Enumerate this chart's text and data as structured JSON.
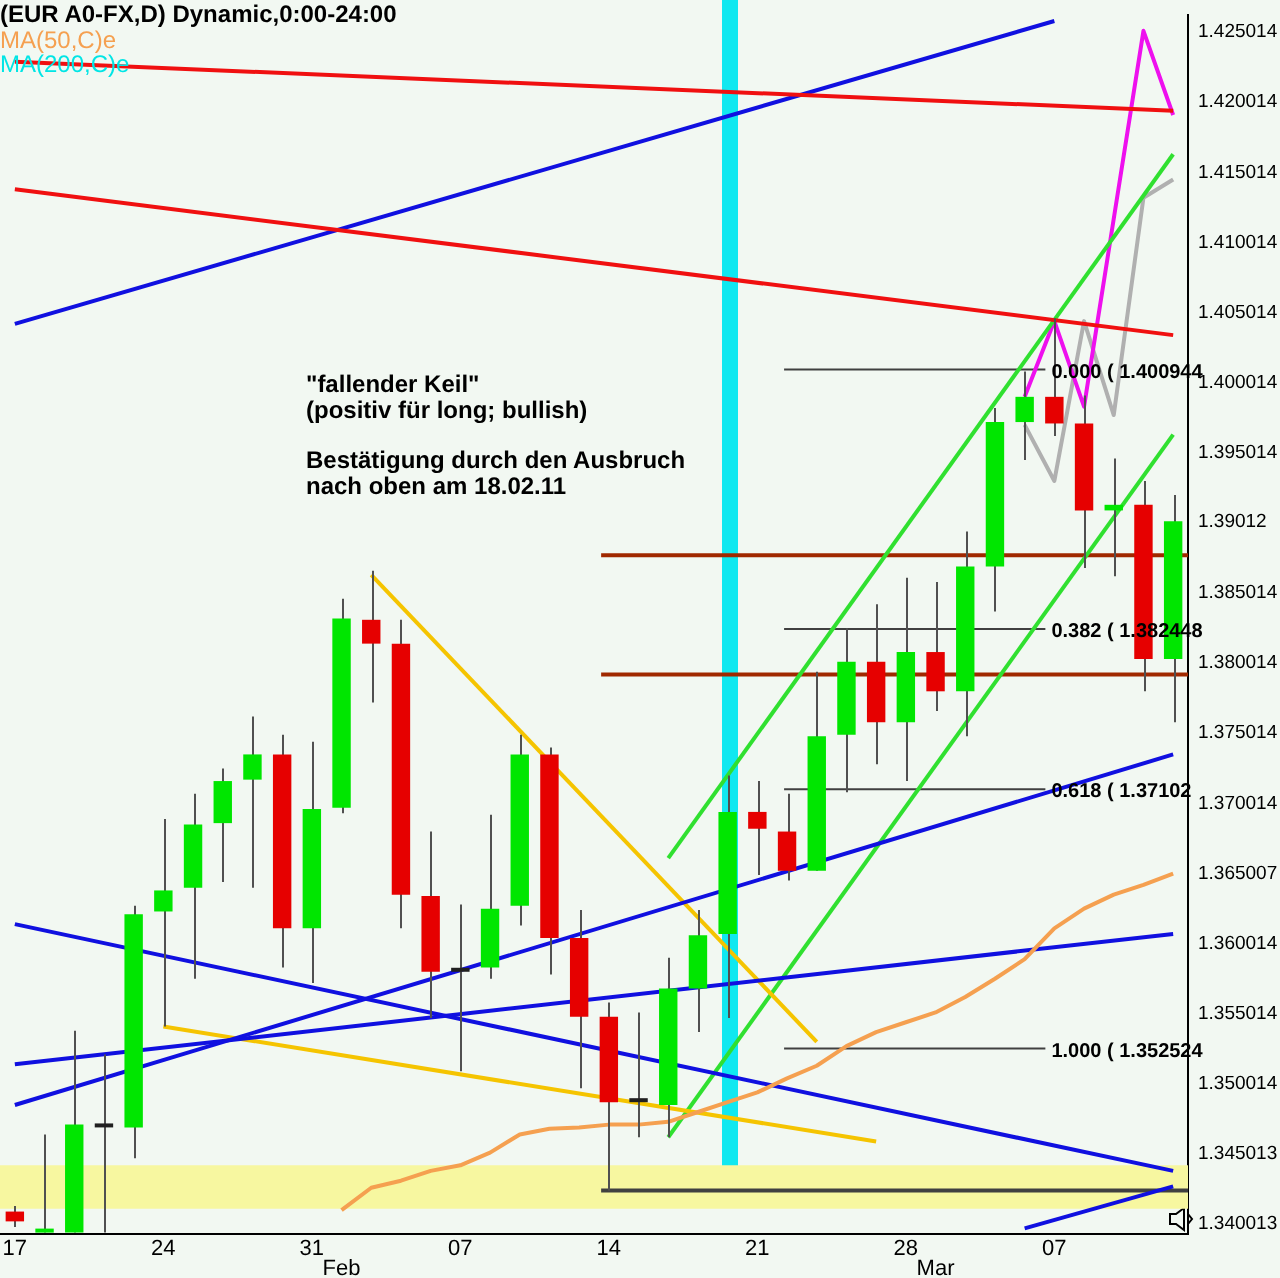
{
  "chart_data": {
    "type": "candlestick",
    "title": "(EUR A0-FX,D) Dynamic,0:00-24:00",
    "categories": [
      "17",
      null,
      null,
      null,
      null,
      "24",
      null,
      null,
      null,
      null,
      "31",
      "Feb",
      null,
      null,
      null,
      "07",
      null,
      null,
      null,
      null,
      "14",
      null,
      null,
      null,
      null,
      "21",
      null,
      null,
      null,
      null,
      "28",
      "Mar",
      null,
      null,
      null,
      "07",
      null,
      null,
      null,
      null
    ],
    "ohlc": [
      [
        1.3409,
        1.3413,
        1.3398,
        1.3402
      ],
      [
        1.3394,
        1.3464,
        1.3394,
        1.3396
      ],
      [
        1.3394,
        1.3538,
        1.3394,
        1.3471
      ],
      [
        1.3469,
        1.3521,
        1.3394,
        1.3469
      ],
      [
        1.3469,
        1.3627,
        1.3447,
        1.3621
      ],
      [
        1.3623,
        1.3689,
        1.3541,
        1.3638
      ],
      [
        1.364,
        1.3707,
        1.3575,
        1.3685
      ],
      [
        1.3686,
        1.3725,
        1.3644,
        1.3716
      ],
      [
        1.3717,
        1.3762,
        1.364,
        1.3735
      ],
      [
        1.3735,
        1.3749,
        1.3583,
        1.3611
      ],
      [
        1.3611,
        1.3744,
        1.3572,
        1.3696
      ],
      [
        1.3697,
        1.3846,
        1.3693,
        1.3832
      ],
      [
        1.3831,
        1.3866,
        1.3772,
        1.3814
      ],
      [
        1.3814,
        1.3831,
        1.3611,
        1.3635
      ],
      [
        1.3634,
        1.368,
        1.3547,
        1.358
      ],
      [
        1.358,
        1.3628,
        1.3509,
        1.358
      ],
      [
        1.3583,
        1.3692,
        1.3575,
        1.3625
      ],
      [
        1.3627,
        1.3749,
        1.3613,
        1.3735
      ],
      [
        1.3735,
        1.374,
        1.3578,
        1.3604
      ],
      [
        1.3604,
        1.3624,
        1.3497,
        1.3548
      ],
      [
        1.3548,
        1.3558,
        1.3424,
        1.3487
      ],
      [
        1.3487,
        1.3551,
        1.3462,
        1.3487
      ],
      [
        1.3485,
        1.359,
        1.3462,
        1.3568
      ],
      [
        1.3568,
        1.3624,
        1.3537,
        1.3606
      ],
      [
        1.3607,
        1.372,
        1.3547,
        1.3694
      ],
      [
        1.3694,
        1.3716,
        1.3649,
        1.3682
      ],
      [
        1.368,
        1.3707,
        1.3645,
        1.3652
      ],
      [
        1.3652,
        1.3794,
        1.3652,
        1.3748
      ],
      [
        1.3749,
        1.3825,
        1.3708,
        1.3801
      ],
      [
        1.3801,
        1.3842,
        1.3728,
        1.3758
      ],
      [
        1.3758,
        1.3861,
        1.3716,
        1.3808
      ],
      [
        1.3808,
        1.3858,
        1.3766,
        1.378
      ],
      [
        1.378,
        1.3894,
        1.3748,
        1.3869
      ],
      [
        1.3869,
        1.3982,
        1.3837,
        1.3972
      ],
      [
        1.3972,
        1.4008,
        1.3945,
        1.399
      ],
      [
        1.399,
        1.4046,
        1.3962,
        1.3971
      ],
      [
        1.3971,
        1.3991,
        1.3868,
        1.3909
      ],
      [
        1.3909,
        1.3946,
        1.3862,
        1.3913
      ],
      [
        1.3913,
        1.393,
        1.378,
        1.3803
      ],
      [
        1.3803,
        1.392,
        1.3758,
        1.39012
      ]
    ],
    "colors": [
      "#e60000",
      "#00e600",
      "#00e600",
      "#202020",
      "#00e600",
      "#00e600",
      "#00e600",
      "#00e600",
      "#00e600",
      "#e60000",
      "#00e600",
      "#00e600",
      "#e60000",
      "#e60000",
      "#e60000",
      "#202020",
      "#00e600",
      "#00e600",
      "#e60000",
      "#e60000",
      "#e60000",
      "#202020",
      "#00e600",
      "#00e600",
      "#00e600",
      "#e60000",
      "#e60000",
      "#00e600",
      "#00e600",
      "#e60000",
      "#00e600",
      "#e60000",
      "#00e600",
      "#00e600",
      "#00e600",
      "#e60000",
      "#e60000",
      "#00e600",
      "#e60000",
      "#00e600"
    ],
    "series": [
      {
        "type": "line",
        "name": "MA(50,C)e",
        "color": "#f5a050",
        "values": [
          null,
          null,
          null,
          null,
          null,
          null,
          null,
          null,
          null,
          null,
          null,
          1.341,
          1.3426,
          1.3431,
          1.3438,
          1.3442,
          1.3451,
          1.3464,
          1.3468,
          1.3469,
          1.3471,
          1.3471,
          1.3473,
          1.348,
          1.3487,
          1.3494,
          1.3504,
          1.3513,
          1.3527,
          1.3537,
          1.3544,
          1.3551,
          1.3562,
          1.3575,
          1.3589,
          1.3611,
          1.3625,
          1.3635,
          1.3642,
          1.365007
        ]
      },
      {
        "type": "line",
        "name": "MA(200,C)e",
        "color": "#00e5e5",
        "values": [
          null,
          null,
          null,
          null,
          null,
          null,
          null,
          null,
          null,
          null,
          null,
          null,
          null,
          null,
          null,
          null,
          null,
          null,
          null,
          null,
          null,
          null,
          null,
          null,
          null,
          null,
          null,
          null,
          null,
          null,
          null,
          null,
          null,
          null,
          null,
          null,
          null,
          null,
          null,
          null
        ]
      },
      {
        "type": "line",
        "color": "#f01010",
        "values": [
          1.4229,
          null,
          null,
          null,
          null,
          null,
          null,
          null,
          null,
          null,
          null,
          null,
          null,
          null,
          null,
          null,
          null,
          null,
          null,
          null,
          null,
          null,
          null,
          null,
          null,
          null,
          null,
          null,
          null,
          null,
          null,
          null,
          null,
          null,
          null,
          null,
          null,
          null,
          null,
          1.4194
        ]
      },
      {
        "type": "line",
        "color": "#f01010",
        "values": [
          1.4138,
          null,
          null,
          null,
          null,
          null,
          null,
          null,
          null,
          null,
          null,
          null,
          null,
          null,
          null,
          null,
          null,
          null,
          null,
          null,
          null,
          null,
          null,
          null,
          null,
          null,
          null,
          null,
          null,
          null,
          null,
          null,
          null,
          null,
          null,
          null,
          null,
          null,
          null,
          1.4034
        ]
      },
      {
        "type": "line",
        "color": "#1010e0",
        "values": [
          1.4042,
          null,
          null,
          null,
          null,
          null,
          null,
          null,
          null,
          null,
          null,
          null,
          null,
          null,
          null,
          null,
          null,
          null,
          null,
          null,
          null,
          null,
          null,
          null,
          null,
          null,
          null,
          null,
          null,
          null,
          null,
          null,
          null,
          null,
          null,
          1.4258,
          null,
          null,
          null,
          null
        ]
      },
      {
        "type": "line",
        "color": "#1010e0",
        "values": [
          1.3614,
          null,
          null,
          null,
          null,
          null,
          null,
          null,
          null,
          null,
          null,
          null,
          null,
          null,
          null,
          null,
          null,
          null,
          null,
          null,
          null,
          null,
          null,
          null,
          null,
          null,
          null,
          null,
          null,
          null,
          null,
          null,
          null,
          null,
          null,
          null,
          null,
          null,
          null,
          1.3438
        ]
      },
      {
        "type": "line",
        "color": "#1010e0",
        "values": [
          1.3485,
          null,
          null,
          null,
          null,
          null,
          null,
          null,
          null,
          null,
          null,
          null,
          null,
          null,
          null,
          null,
          null,
          null,
          null,
          null,
          null,
          null,
          null,
          null,
          null,
          null,
          null,
          null,
          null,
          null,
          null,
          null,
          null,
          null,
          null,
          null,
          null,
          null,
          null,
          1.3735
        ]
      },
      {
        "type": "line",
        "color": "#1010e0",
        "values": [
          1.3514,
          null,
          null,
          null,
          null,
          null,
          null,
          null,
          null,
          null,
          null,
          null,
          null,
          null,
          null,
          null,
          null,
          null,
          null,
          null,
          null,
          null,
          null,
          null,
          null,
          null,
          null,
          null,
          null,
          null,
          null,
          null,
          null,
          null,
          null,
          null,
          null,
          null,
          null,
          1.3607
        ]
      },
      {
        "type": "line",
        "color": "#1010e0",
        "values": [
          null,
          null,
          null,
          null,
          null,
          null,
          null,
          null,
          null,
          null,
          null,
          null,
          null,
          null,
          null,
          null,
          null,
          null,
          null,
          null,
          null,
          null,
          null,
          null,
          null,
          null,
          null,
          null,
          null,
          null,
          null,
          null,
          null,
          null,
          1.3397,
          null,
          null,
          null,
          null,
          1.3427
        ]
      },
      {
        "type": "line",
        "color": "#f5c400",
        "values": [
          null,
          null,
          null,
          null,
          null,
          null,
          null,
          null,
          null,
          null,
          null,
          null,
          1.3863,
          null,
          null,
          null,
          null,
          null,
          null,
          null,
          null,
          null,
          null,
          null,
          null,
          null,
          null,
          1.353,
          null,
          null,
          null,
          null,
          null,
          null,
          null,
          null,
          null,
          null,
          null,
          null
        ]
      },
      {
        "type": "line",
        "color": "#f5c400",
        "values": [
          null,
          null,
          null,
          null,
          null,
          1.3541,
          null,
          null,
          null,
          null,
          null,
          null,
          null,
          null,
          null,
          null,
          null,
          null,
          null,
          null,
          null,
          null,
          null,
          null,
          null,
          null,
          null,
          null,
          null,
          1.3459,
          null,
          null,
          null,
          null,
          null,
          null,
          null,
          null,
          null,
          null
        ]
      },
      {
        "type": "line",
        "color": "#30e030",
        "values": [
          null,
          null,
          null,
          null,
          null,
          null,
          null,
          null,
          null,
          null,
          null,
          null,
          null,
          null,
          null,
          null,
          null,
          null,
          null,
          null,
          null,
          null,
          1.3661,
          null,
          null,
          null,
          null,
          null,
          null,
          null,
          null,
          null,
          null,
          null,
          null,
          null,
          null,
          null,
          null,
          1.4163
        ]
      },
      {
        "type": "line",
        "color": "#30e030",
        "values": [
          null,
          null,
          null,
          null,
          null,
          null,
          null,
          null,
          null,
          null,
          null,
          null,
          null,
          null,
          null,
          null,
          null,
          null,
          null,
          null,
          null,
          null,
          1.3462,
          null,
          null,
          null,
          null,
          null,
          null,
          null,
          null,
          null,
          null,
          null,
          null,
          null,
          null,
          null,
          null,
          1.3963
        ]
      },
      {
        "type": "line",
        "color": "#ee10ee",
        "values": [
          null,
          null,
          null,
          null,
          null,
          null,
          null,
          null,
          null,
          null,
          null,
          null,
          null,
          null,
          null,
          null,
          null,
          null,
          null,
          null,
          null,
          null,
          null,
          null,
          null,
          null,
          null,
          null,
          null,
          null,
          null,
          null,
          null,
          null,
          1.399,
          1.4044,
          1.3983,
          null,
          1.4251,
          1.4191
        ]
      },
      {
        "type": "line",
        "color": "#b0b0b0",
        "values": [
          null,
          null,
          null,
          null,
          null,
          null,
          null,
          null,
          null,
          null,
          null,
          null,
          null,
          null,
          null,
          null,
          null,
          null,
          null,
          null,
          null,
          null,
          null,
          null,
          null,
          null,
          null,
          null,
          null,
          null,
          null,
          null,
          null,
          null,
          1.397,
          1.393,
          1.4044,
          1.3977,
          1.4132,
          1.4145
        ]
      }
    ],
    "ylim": [
      1.3393,
      1.4262
    ],
    "yticks": [
      1.340013,
      1.345013,
      1.350014,
      1.355014,
      1.360014,
      1.365007,
      1.370014,
      1.375014,
      1.380014,
      1.385014,
      1.39012,
      1.395014,
      1.400014,
      1.405014,
      1.410014,
      1.415014,
      1.420014,
      1.425014
    ],
    "bands": [
      {
        "axis": "y",
        "from": 1.3411,
        "to": 1.3442,
        "color": "#f7f7a0"
      }
    ],
    "ref_lines": [
      {
        "axis": "y",
        "value": 1.3877,
        "color": "#a02800"
      },
      {
        "axis": "y",
        "value": 1.3792,
        "color": "#a02800"
      },
      {
        "axis": "y",
        "value": 1.3424,
        "color": "#404040"
      },
      {
        "axis": "y",
        "value": 1.400944,
        "label": "0.000 ( 1.400944",
        "color": "#404040"
      },
      {
        "axis": "y",
        "value": 1.382448,
        "label": "0.382 ( 1.382448",
        "color": "#404040"
      },
      {
        "axis": "y",
        "value": 1.37102,
        "label": "0.618 ( 1.37102",
        "color": "#404040"
      },
      {
        "axis": "y",
        "value": 1.352524,
        "label": "1.000 ( 1.352524",
        "color": "#404040"
      }
    ],
    "annotations": [
      "\"fallender Keil\"\n(positiv für long; bullish)",
      "Bestätigung durch den Ausbruch\nnach oben am 18.02.11"
    ],
    "legend": "top left"
  }
}
